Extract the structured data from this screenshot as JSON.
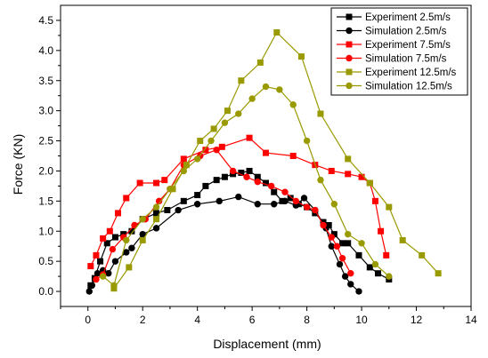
{
  "chart_data": {
    "type": "scatter",
    "xlabel": "Displacement (mm)",
    "ylabel": "Force (KN)",
    "xlim": [
      -1,
      14
    ],
    "ylim": [
      -0.25,
      4.75
    ],
    "xticks": [
      0,
      2,
      4,
      6,
      8,
      10,
      12,
      14
    ],
    "yticks": [
      0.0,
      0.5,
      1.0,
      1.5,
      2.0,
      2.5,
      3.0,
      3.5,
      4.0,
      4.5
    ],
    "ytick_labels": [
      "0.0",
      "0.5",
      "1.0",
      "1.5",
      "2.0",
      "2.5",
      "3.0",
      "3.5",
      "4.0",
      "4.5"
    ],
    "grid": false,
    "legend_position": "top-right",
    "series": [
      {
        "name": "Experiment 2.5m/s",
        "color": "#000000",
        "marker": "square",
        "x": [
          0.1,
          0.25,
          0.45,
          0.7,
          1.0,
          1.3,
          1.6,
          2.0,
          2.5,
          2.9,
          3.5,
          4.0,
          4.3,
          4.7,
          5.0,
          5.3,
          5.6,
          5.9,
          6.2,
          6.5,
          6.8,
          7.1,
          7.4,
          7.7,
          8.0,
          8.3,
          8.6,
          8.8,
          9.0,
          9.3,
          9.5,
          9.9,
          10.3,
          10.6,
          11.0
        ],
        "y": [
          0.1,
          0.22,
          0.5,
          0.8,
          0.9,
          0.95,
          1.0,
          1.2,
          1.3,
          1.35,
          1.5,
          1.6,
          1.75,
          1.85,
          1.9,
          1.95,
          1.97,
          2.0,
          1.9,
          1.8,
          1.65,
          1.5,
          1.55,
          1.45,
          1.4,
          1.3,
          1.15,
          1.1,
          0.95,
          0.8,
          0.8,
          0.6,
          0.4,
          0.3,
          0.2
        ]
      },
      {
        "name": "Simulation 2.5m/s",
        "color": "#000000",
        "marker": "circle",
        "x": [
          0.05,
          0.15,
          0.35,
          0.55,
          0.75,
          1.0,
          1.4,
          1.6,
          2.0,
          2.5,
          3.3,
          4.0,
          4.8,
          5.5,
          6.2,
          6.8,
          7.2,
          7.6,
          7.9,
          8.3,
          8.7,
          8.9,
          9.2,
          9.4,
          9.6,
          9.9
        ],
        "y": [
          0.0,
          0.1,
          0.3,
          0.35,
          0.3,
          0.5,
          0.65,
          0.72,
          0.95,
          1.05,
          1.35,
          1.45,
          1.5,
          1.57,
          1.45,
          1.45,
          1.5,
          1.43,
          1.55,
          1.35,
          1.05,
          0.75,
          0.45,
          0.25,
          0.12,
          0.0
        ]
      },
      {
        "name": "Experiment 7.5m/s",
        "color": "#ff0000",
        "marker": "square",
        "x": [
          0.1,
          0.3,
          0.55,
          0.8,
          1.1,
          1.4,
          1.9,
          2.5,
          2.8,
          3.5,
          4.3,
          4.9,
          5.9,
          6.5,
          7.5,
          8.3,
          8.9,
          9.5,
          10.0,
          10.3,
          10.5,
          10.7,
          10.9
        ],
        "y": [
          0.42,
          0.6,
          0.88,
          1.0,
          1.3,
          1.55,
          1.8,
          1.8,
          1.85,
          2.2,
          2.35,
          2.4,
          2.55,
          2.3,
          2.25,
          2.1,
          2.0,
          1.95,
          1.9,
          1.8,
          1.5,
          1.0,
          0.6
        ]
      },
      {
        "name": "Simulation 7.5m/s",
        "color": "#ff0000",
        "marker": "circle",
        "x": [
          0.3,
          0.55,
          0.9,
          1.3,
          1.7,
          2.1,
          2.6,
          3.0,
          3.5,
          4.1,
          4.7,
          5.3,
          5.8,
          6.2,
          6.7,
          7.2,
          7.6,
          8.0,
          8.3,
          8.6,
          8.9,
          9.1,
          9.3,
          9.6
        ],
        "y": [
          0.2,
          0.28,
          0.7,
          0.9,
          1.1,
          1.2,
          1.5,
          1.7,
          2.1,
          2.25,
          2.35,
          2.0,
          1.9,
          1.82,
          1.75,
          1.65,
          1.5,
          1.4,
          1.35,
          1.1,
          0.9,
          0.75,
          0.55,
          0.3
        ]
      },
      {
        "name": "Experiment 12.5m/s",
        "color": "#999900",
        "marker": "square",
        "x": [
          0.95,
          1.5,
          2.0,
          2.5,
          3.1,
          3.6,
          4.1,
          4.6,
          5.1,
          5.6,
          6.3,
          6.9,
          7.8,
          8.5,
          9.5,
          10.3,
          11.0,
          11.5,
          12.2,
          12.8
        ],
        "y": [
          0.05,
          0.4,
          0.85,
          1.2,
          1.7,
          2.1,
          2.5,
          2.7,
          3.0,
          3.5,
          3.8,
          4.3,
          3.9,
          2.95,
          2.2,
          1.8,
          1.4,
          0.85,
          0.6,
          0.3
        ]
      },
      {
        "name": "Simulation 12.5m/s",
        "color": "#999900",
        "marker": "circle",
        "x": [
          0.55,
          0.95,
          1.4,
          2.0,
          2.5,
          3.0,
          3.5,
          4.0,
          4.5,
          5.0,
          5.5,
          6.0,
          6.5,
          7.0,
          7.5,
          8.0,
          8.5,
          9.0,
          9.5,
          10.0,
          10.5,
          11.0
        ],
        "y": [
          0.25,
          0.1,
          0.85,
          1.2,
          1.4,
          1.7,
          2.0,
          2.2,
          2.5,
          2.8,
          2.95,
          3.2,
          3.4,
          3.35,
          3.1,
          2.5,
          1.85,
          1.45,
          0.95,
          0.8,
          0.45,
          0.25
        ]
      }
    ]
  }
}
